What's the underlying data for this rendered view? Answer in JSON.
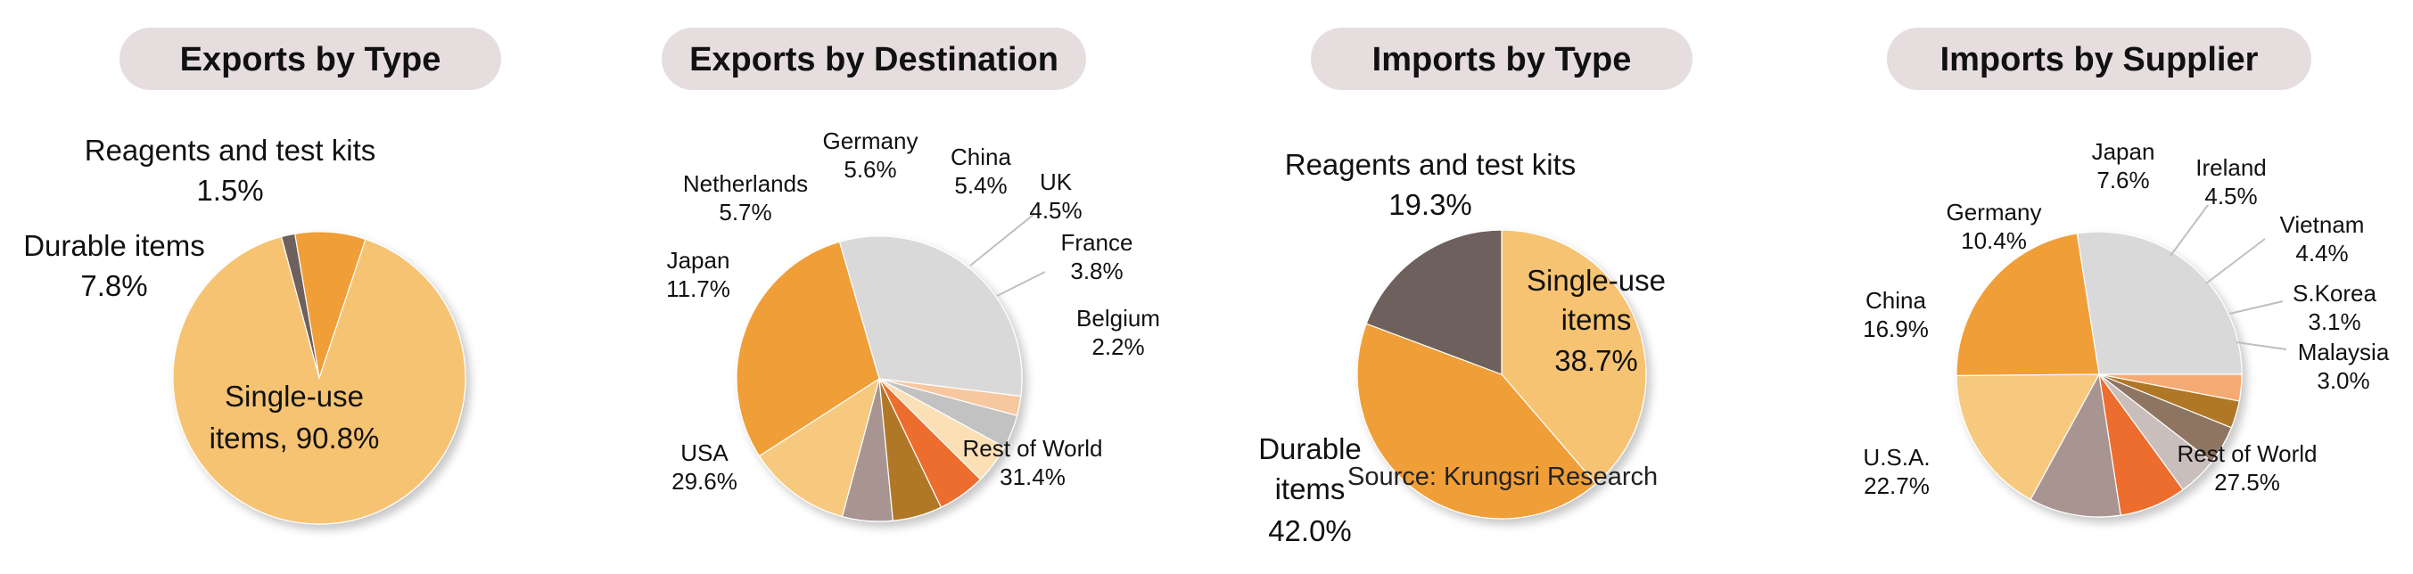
{
  "source_note": "Source: Krungsri Research",
  "charts": [
    {
      "title": "Exports by Type",
      "type": "pie",
      "slices": [
        {
          "name": "Single-use items",
          "value": 90.8,
          "label": "90.8%",
          "color": "#F6C373"
        },
        {
          "name": "Durable items",
          "value": 7.8,
          "label": "7.8%",
          "color": "#F09E39"
        },
        {
          "name": "Reagents and test kits",
          "value": 1.5,
          "label": "1.5%",
          "color": "#6E605C"
        }
      ]
    },
    {
      "title": "Exports by Destination",
      "type": "pie",
      "slices": [
        {
          "name": "Rest of World",
          "value": 31.4,
          "label": "31.4%",
          "color": "#D9D9D9"
        },
        {
          "name": "USA",
          "value": 29.6,
          "label": "29.6%",
          "color": "#F09E39"
        },
        {
          "name": "Japan",
          "value": 11.7,
          "label": "11.7%",
          "color": "#F6C97E"
        },
        {
          "name": "Netherlands",
          "value": 5.7,
          "label": "5.7%",
          "color": "#A89591"
        },
        {
          "name": "Germany",
          "value": 5.6,
          "label": "5.6%",
          "color": "#B07726"
        },
        {
          "name": "China",
          "value": 5.4,
          "label": "5.4%",
          "color": "#EC6D2D"
        },
        {
          "name": "UK",
          "value": 4.5,
          "label": "4.5%",
          "color": "#FBE0B6"
        },
        {
          "name": "France",
          "value": 3.8,
          "label": "3.8%",
          "color": "#C2C2C2"
        },
        {
          "name": "Belgium",
          "value": 2.2,
          "label": "2.2%",
          "color": "#F7C7A0"
        }
      ]
    },
    {
      "title": "Imports by Type",
      "type": "pie",
      "slices": [
        {
          "name": "Single-use items",
          "value": 38.7,
          "label": "38.7%",
          "color": "#F6C373"
        },
        {
          "name": "Durable items",
          "value": 42.0,
          "label": "42.0%",
          "color": "#F09E39"
        },
        {
          "name": "Reagents and test kits",
          "value": 19.3,
          "label": "19.3%",
          "color": "#6E605C"
        }
      ]
    },
    {
      "title": "Imports by Supplier",
      "type": "pie",
      "slices": [
        {
          "name": "Rest of World",
          "value": 27.5,
          "label": "27.5%",
          "color": "#D9D9D9"
        },
        {
          "name": "U.S.A.",
          "value": 22.7,
          "label": "22.7%",
          "color": "#F09E39"
        },
        {
          "name": "China",
          "value": 16.9,
          "label": "16.9%",
          "color": "#F6C97E"
        },
        {
          "name": "Germany",
          "value": 10.4,
          "label": "10.4%",
          "color": "#A89591"
        },
        {
          "name": "Japan",
          "value": 7.6,
          "label": "7.6%",
          "color": "#EC6D2D"
        },
        {
          "name": "Ireland",
          "value": 4.5,
          "label": "4.5%",
          "color": "#C9BEBC"
        },
        {
          "name": "Vietnam",
          "value": 4.4,
          "label": "4.4%",
          "color": "#8E7462"
        },
        {
          "name": "S.Korea",
          "value": 3.1,
          "label": "3.1%",
          "color": "#B07726"
        },
        {
          "name": "Malaysia",
          "value": 3.0,
          "label": "3.0%",
          "color": "#F5AA73"
        }
      ]
    }
  ]
}
